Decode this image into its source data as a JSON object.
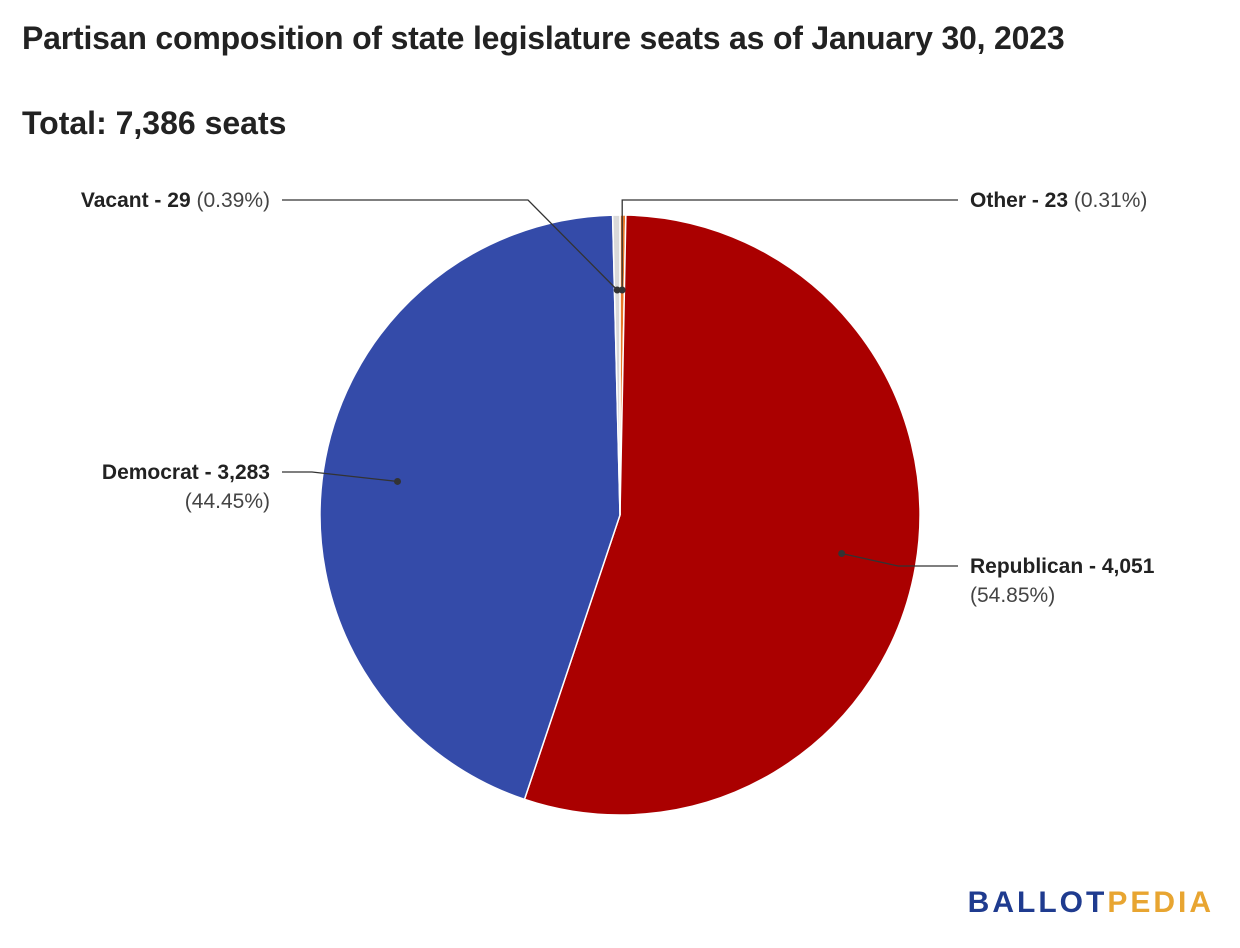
{
  "title": "Partisan composition of state legislature seats as of January 30, 2023",
  "subtitle": "Total: 7,386 seats",
  "logo": {
    "part1": "BALLOT",
    "part2": "PEDIA",
    "color1": "#1f3b8f",
    "color2": "#e8a531"
  },
  "chart_data": {
    "type": "pie",
    "title": "Partisan composition of state legislature seats as of January 30, 2023",
    "subtitle": "Total: 7,386 seats",
    "total": 7386,
    "slices": [
      {
        "key": "other",
        "label": "Other - 23",
        "pct_label": "(0.31%)",
        "value": 23,
        "percent": 0.31,
        "color": "#e8792b"
      },
      {
        "key": "republican",
        "label": "Republican - 4,051",
        "pct_label": "(54.85%)",
        "value": 4051,
        "percent": 54.85,
        "color": "#aa0000"
      },
      {
        "key": "democrat",
        "label": "Democrat - 3,283",
        "pct_label": "(44.45%)",
        "value": 3283,
        "percent": 44.45,
        "color": "#344ba9"
      },
      {
        "key": "vacant",
        "label": "Vacant - 29",
        "pct_label": "(0.39%)",
        "value": 29,
        "percent": 0.39,
        "color": "#d9d9d9"
      }
    ],
    "start_angle": "12 o'clock",
    "direction": "clockwise",
    "legend": "none (callout labels)"
  }
}
